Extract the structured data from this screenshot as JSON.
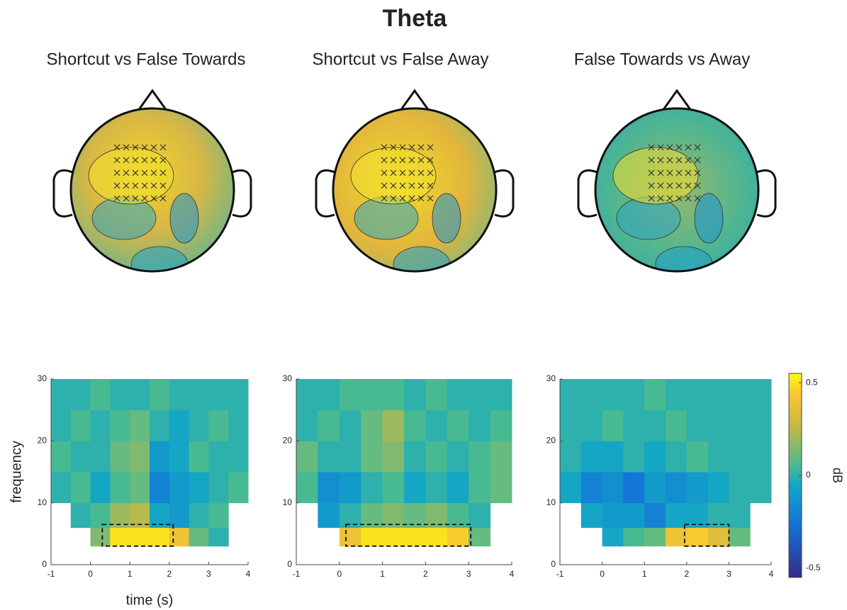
{
  "figure_title": "Theta",
  "colorbar": {
    "label": "dB",
    "clim": [
      -0.55,
      0.55
    ],
    "ticks": [
      -0.5,
      0,
      0.5
    ]
  },
  "chart_data": [
    {
      "type": "heatmap",
      "title": "Shortcut vs False Towards",
      "xlabel": "time (s)",
      "ylabel": "frequency",
      "xlim": [
        -1,
        4
      ],
      "ylim": [
        0,
        30
      ],
      "xticks": [
        -1,
        0,
        1,
        2,
        3,
        4
      ],
      "yticks": [
        0,
        10,
        20,
        30
      ],
      "xbins": [
        -1,
        -0.5,
        0,
        0.5,
        1,
        1.5,
        2,
        2.5,
        3,
        3.5,
        4
      ],
      "ybins": [
        3,
        6,
        10,
        15,
        20,
        25,
        30
      ],
      "values": [
        [
          null,
          null,
          0.15,
          0.5,
          0.5,
          0.5,
          0.4,
          0.1,
          0.0,
          null
        ],
        [
          null,
          0.0,
          0.05,
          0.2,
          0.25,
          -0.05,
          -0.1,
          0.0,
          0.05,
          null
        ],
        [
          0.0,
          0.05,
          -0.05,
          0.05,
          0.1,
          -0.2,
          -0.1,
          -0.05,
          0.0,
          0.05
        ],
        [
          0.05,
          0,
          0,
          0.1,
          0.15,
          -0.1,
          -0.05,
          0.05,
          0,
          0
        ],
        [
          0,
          0.05,
          0,
          0.05,
          0.1,
          0,
          -0.05,
          0,
          0.05,
          0
        ],
        [
          0,
          0,
          0.05,
          0,
          0,
          0.05,
          0,
          0,
          0,
          0
        ]
      ],
      "box": {
        "x": [
          0.3,
          2.1
        ],
        "y": [
          3,
          6.5
        ]
      }
    },
    {
      "type": "heatmap",
      "title": "Shortcut vs False Away",
      "xlim": [
        -1,
        4
      ],
      "ylim": [
        0,
        30
      ],
      "xticks": [
        -1,
        0,
        1,
        2,
        3,
        4
      ],
      "yticks": [
        0,
        10,
        20,
        30
      ],
      "xbins": [
        -1,
        -0.5,
        0,
        0.5,
        1,
        1.5,
        2,
        2.5,
        3,
        3.5,
        4
      ],
      "ybins": [
        3,
        6,
        10,
        15,
        20,
        25,
        30
      ],
      "values": [
        [
          null,
          null,
          0.4,
          0.5,
          0.5,
          0.5,
          0.5,
          0.45,
          0.1,
          null
        ],
        [
          null,
          -0.1,
          0,
          0.1,
          0.15,
          0.1,
          0.15,
          0.05,
          0,
          null
        ],
        [
          0.05,
          -0.15,
          -0.1,
          0,
          0.05,
          -0.05,
          0,
          -0.05,
          0.05,
          0.1
        ],
        [
          0.1,
          0,
          0,
          0.1,
          0.15,
          0,
          0.05,
          0,
          0.05,
          0.1
        ],
        [
          0,
          0.05,
          0,
          0.1,
          0.2,
          0.05,
          0,
          0.05,
          0,
          0.05
        ],
        [
          0,
          0,
          0.05,
          0.05,
          0.05,
          0,
          0.05,
          0,
          0,
          0
        ]
      ],
      "box": {
        "x": [
          0.15,
          3.05
        ],
        "y": [
          3,
          6.5
        ]
      }
    },
    {
      "type": "heatmap",
      "title": "False Towards vs Away",
      "xlim": [
        -1,
        4
      ],
      "ylim": [
        0,
        30
      ],
      "xticks": [
        -1,
        0,
        1,
        2,
        3,
        4
      ],
      "yticks": [
        0,
        10,
        20,
        30
      ],
      "xbins": [
        -1,
        -0.5,
        0,
        0.5,
        1,
        1.5,
        2,
        2.5,
        3,
        3.5,
        4
      ],
      "ybins": [
        3,
        6,
        10,
        15,
        20,
        25,
        30
      ],
      "values": [
        [
          null,
          null,
          -0.05,
          0.05,
          0.1,
          0.4,
          0.45,
          0.35,
          0.1,
          null
        ],
        [
          null,
          -0.05,
          -0.1,
          -0.1,
          -0.2,
          -0.05,
          -0.05,
          0,
          0,
          null
        ],
        [
          -0.05,
          -0.2,
          -0.15,
          -0.25,
          -0.1,
          -0.15,
          -0.1,
          -0.05,
          0,
          0
        ],
        [
          0,
          -0.05,
          -0.05,
          0,
          -0.05,
          0,
          0.05,
          0,
          0,
          0
        ],
        [
          0,
          0,
          0.05,
          0,
          0,
          0.05,
          0,
          0,
          0,
          0
        ],
        [
          0,
          0,
          0,
          0,
          0.05,
          0,
          0,
          0,
          0,
          0
        ]
      ],
      "box": {
        "x": [
          1.95,
          3.0
        ],
        "y": [
          3,
          6.5
        ]
      }
    }
  ]
}
